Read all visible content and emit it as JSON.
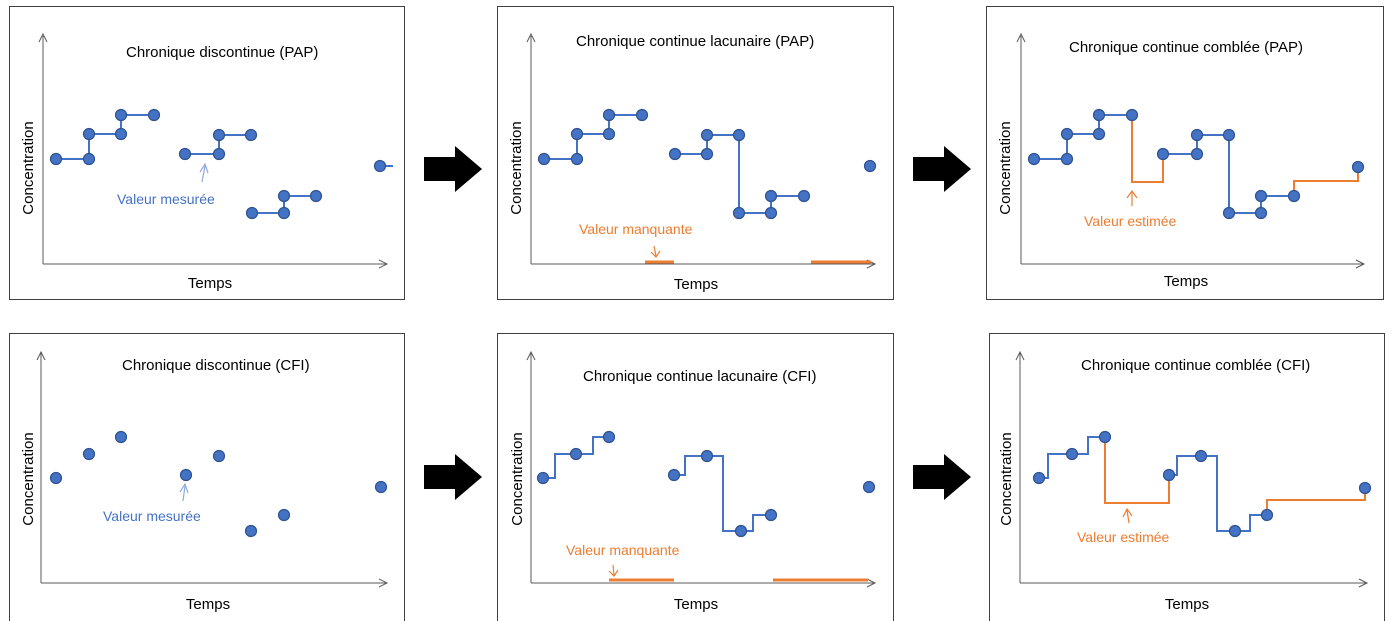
{
  "colors": {
    "measured": "#4472C4",
    "point_fill": "#4472C4",
    "point_stroke": "#2F528F",
    "estimated": "#ED7D31",
    "missing": "#ED7D31",
    "axis": "#595959",
    "frame": "#404040"
  },
  "axis_labels": {
    "x": "Temps",
    "y": "Concentration"
  },
  "panels": [
    {
      "id": "pap-discontinuous",
      "title": "Chronique discontinue (PAP)",
      "annotation": "Valeur mesurée"
    },
    {
      "id": "pap-gappy",
      "title": "Chronique continue lacunaire (PAP)",
      "annotation": "Valeur manquante"
    },
    {
      "id": "pap-filled",
      "title": "Chronique continue comblée (PAP)",
      "annotation": "Valeur estimée"
    },
    {
      "id": "cfi-discontinuous",
      "title": "Chronique discontinue (CFI)",
      "annotation": "Valeur mesurée"
    },
    {
      "id": "cfi-gappy",
      "title": "Chronique continue lacunaire (CFI)",
      "annotation": "Valeur manquante"
    },
    {
      "id": "cfi-filled",
      "title": "Chronique continue comblée (CFI)",
      "annotation": "Valeur estimée"
    }
  ],
  "arrow_icon": "right-arrow-icon"
}
